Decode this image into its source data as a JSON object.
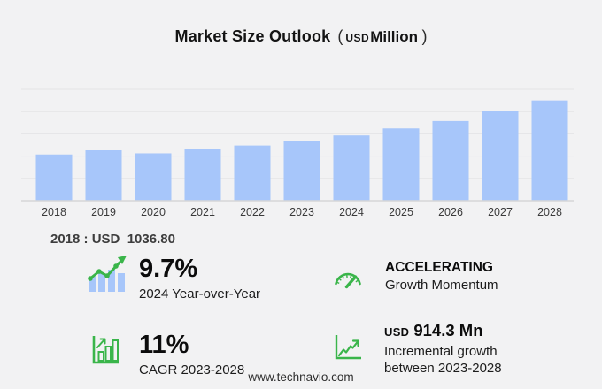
{
  "title": {
    "main": "Market Size Outlook",
    "paren_open": "(",
    "unit_small": "USD",
    "unit_bold": "Million",
    "paren_close": ")"
  },
  "chart_data": {
    "type": "bar",
    "title": "Market Size Outlook (USD Million)",
    "categories": [
      "2018",
      "2019",
      "2020",
      "2021",
      "2022",
      "2023",
      "2024",
      "2025",
      "2026",
      "2027",
      "2028"
    ],
    "values": [
      1036.8,
      1131,
      1062,
      1152,
      1238,
      1334.7,
      1464.2,
      1622,
      1788,
      2014,
      2249
    ],
    "xlabel": "",
    "ylabel": "",
    "ylim": [
      0,
      2500
    ],
    "gridline_step": 500,
    "grid": "on",
    "legend": "none",
    "bar_color": "#a7c6fa",
    "annotation": "2018 : USD  1036.80"
  },
  "stats": [
    {
      "icon": "bar-trend-icon",
      "value": "9.7%",
      "label": "2024 Year-over-Year"
    },
    {
      "icon": "speedometer-icon",
      "value": "ACCELERATING",
      "label": "Growth Momentum"
    },
    {
      "icon": "bar-growth-icon",
      "value": "11%",
      "label": "CAGR 2023-2028"
    },
    {
      "icon": "line-growth-icon",
      "value_prefix": "USD",
      "value": "914.3 Mn",
      "label": "Incremental growth",
      "label2": "between 2023-2028"
    }
  ],
  "footer": "www.technavio.com",
  "colors": {
    "background": "#f2f2f3",
    "bar": "#a7c6fa",
    "grid": "#e4e4e6",
    "axis": "#d6d6d8",
    "green": "#3ab54a"
  }
}
